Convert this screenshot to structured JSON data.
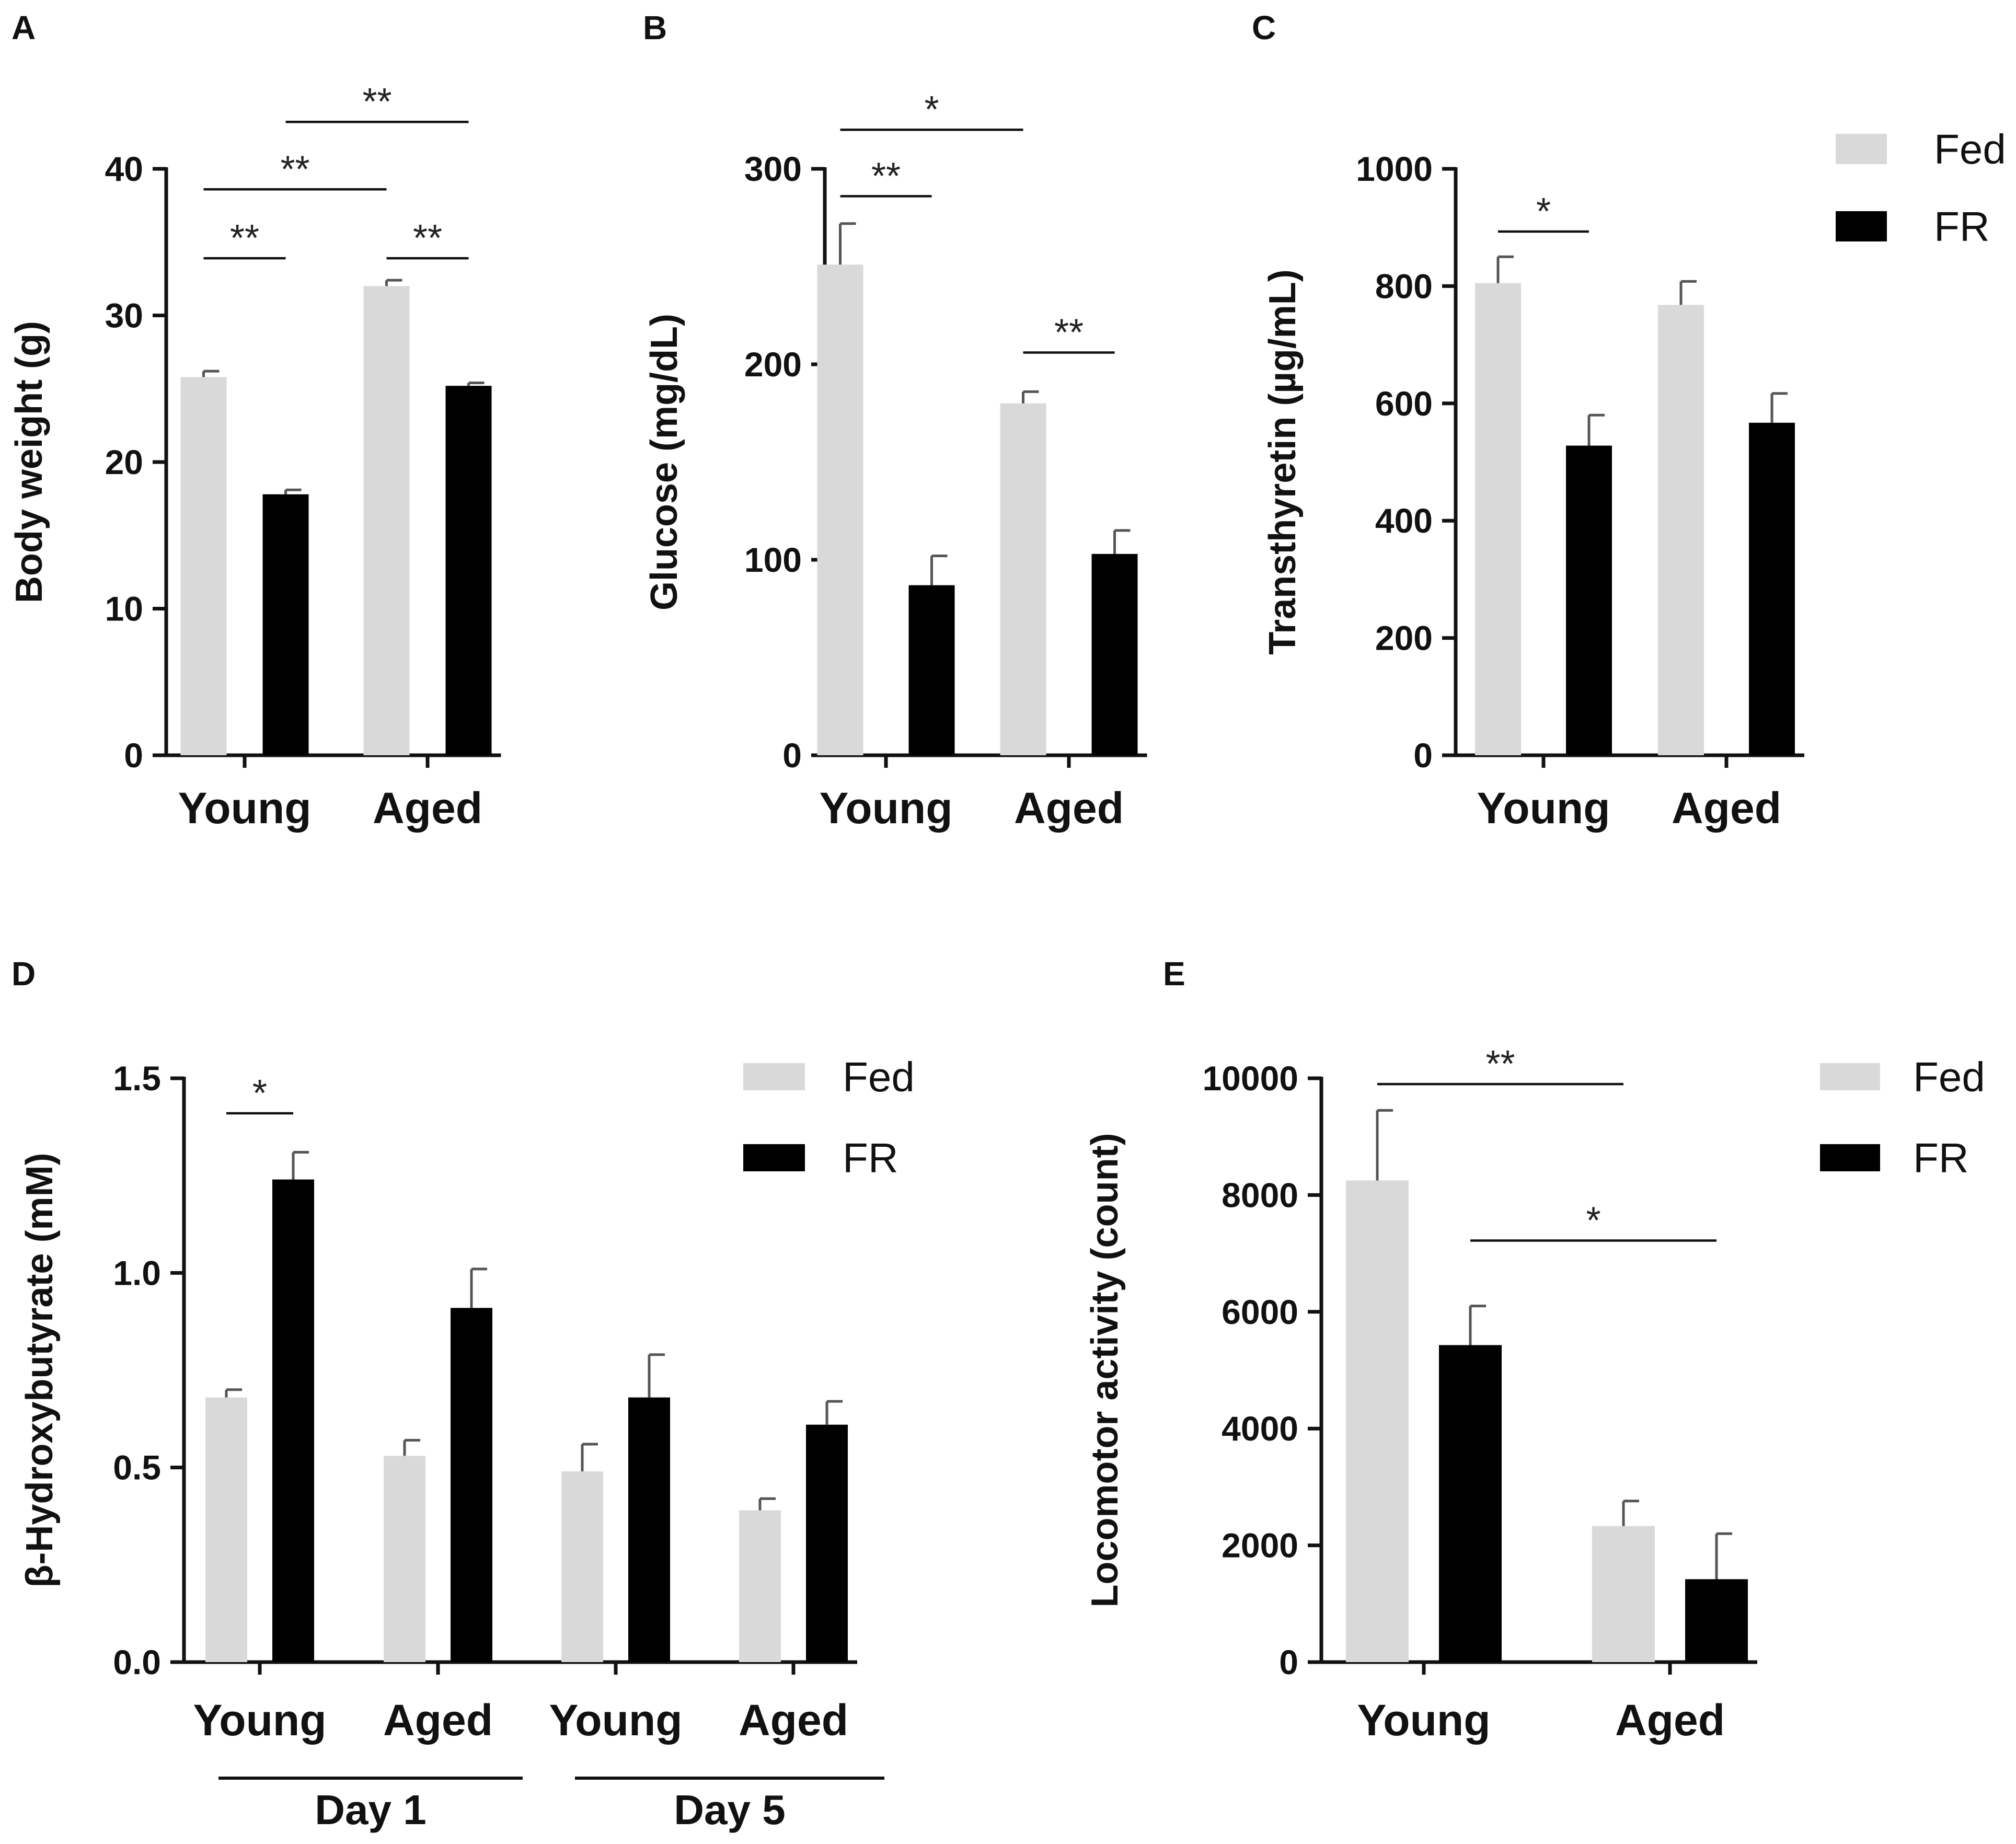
{
  "colors": {
    "fed": "#d9d9d9",
    "fr": "#000000",
    "axis": "#111111"
  },
  "legend": [
    {
      "name": "Fed",
      "color": "#d9d9d9"
    },
    {
      "name": "FR",
      "color": "#000000"
    }
  ],
  "chart_data": [
    {
      "panel": "A",
      "type": "bar",
      "ylabel": "Body weight (g)",
      "ylim": [
        0,
        40
      ],
      "yticks": [
        0,
        10,
        20,
        30,
        40
      ],
      "categories": [
        "Young",
        "Aged"
      ],
      "series": [
        {
          "name": "Fed",
          "values": [
            25.8,
            32.0
          ],
          "errors": [
            0.4,
            0.4
          ]
        },
        {
          "name": "FR",
          "values": [
            17.8,
            25.2
          ],
          "errors": [
            0.3,
            0.2
          ]
        }
      ],
      "significance": [
        {
          "label": "**",
          "from": [
            0,
            0
          ],
          "to": [
            0,
            1
          ],
          "y": 33.9
        },
        {
          "label": "**",
          "from": [
            0,
            0
          ],
          "to": [
            1,
            0
          ],
          "y": 38.6
        },
        {
          "label": "**",
          "from": [
            0,
            1
          ],
          "to": [
            1,
            1
          ],
          "y": 43.2
        },
        {
          "label": "**",
          "from": [
            1,
            0
          ],
          "to": [
            1,
            1
          ],
          "y": 33.9
        }
      ],
      "legend": false
    },
    {
      "panel": "B",
      "type": "bar",
      "ylabel": "Glucose (mg/dL)",
      "ylim": [
        0,
        300
      ],
      "yticks": [
        0,
        100,
        200,
        300
      ],
      "categories": [
        "Young",
        "Aged"
      ],
      "series": [
        {
          "name": "Fed",
          "values": [
            251,
            180
          ],
          "errors": [
            21,
            6
          ]
        },
        {
          "name": "FR",
          "values": [
            87,
            103
          ],
          "errors": [
            15,
            12
          ]
        }
      ],
      "significance": [
        {
          "label": "**",
          "from": [
            0,
            0
          ],
          "to": [
            0,
            1
          ],
          "y": 286
        },
        {
          "label": "*",
          "from": [
            0,
            0
          ],
          "to": [
            1,
            0
          ],
          "y": 320
        },
        {
          "label": "**",
          "from": [
            1,
            0
          ],
          "to": [
            1,
            1
          ],
          "y": 206
        }
      ],
      "legend": false
    },
    {
      "panel": "C",
      "type": "bar",
      "ylabel": "Transthyretin (µg/mL)",
      "ylim": [
        0,
        1000
      ],
      "yticks": [
        0,
        200,
        400,
        600,
        800,
        1000
      ],
      "categories": [
        "Young",
        "Aged"
      ],
      "series": [
        {
          "name": "Fed",
          "values": [
            805,
            768
          ],
          "errors": [
            45,
            40
          ]
        },
        {
          "name": "FR",
          "values": [
            528,
            567
          ],
          "errors": [
            52,
            50
          ]
        }
      ],
      "significance": [
        {
          "label": "*",
          "from": [
            0,
            0
          ],
          "to": [
            0,
            1
          ],
          "y": 893
        }
      ],
      "legend": true
    },
    {
      "panel": "D",
      "type": "bar",
      "ylabel": "β-Hydroxybutyrate (mM)",
      "ylim": [
        0,
        1.5
      ],
      "yticks": [
        "0.0",
        "0.5",
        "1.0",
        "1.5"
      ],
      "categories": [
        "Young",
        "Aged",
        "Young",
        "Aged"
      ],
      "groups": [
        {
          "label": "Day 1",
          "categories": [
            0,
            1
          ]
        },
        {
          "label": "Day 5",
          "categories": [
            2,
            3
          ]
        }
      ],
      "series": [
        {
          "name": "Fed",
          "values": [
            0.68,
            0.53,
            0.49,
            0.39
          ],
          "errors": [
            0.02,
            0.04,
            0.07,
            0.03
          ]
        },
        {
          "name": "FR",
          "values": [
            1.24,
            0.91,
            0.68,
            0.61
          ],
          "errors": [
            0.07,
            0.1,
            0.11,
            0.06
          ]
        }
      ],
      "significance": [
        {
          "label": "*",
          "from": [
            0,
            0
          ],
          "to": [
            0,
            1
          ],
          "y": 1.41
        }
      ],
      "legend": true
    },
    {
      "panel": "E",
      "type": "bar",
      "ylabel": "Locomotor activity (count)",
      "ylim": [
        0,
        10000
      ],
      "yticks": [
        0,
        2000,
        4000,
        6000,
        8000,
        10000
      ],
      "categories": [
        "Young",
        "Aged"
      ],
      "series": [
        {
          "name": "Fed",
          "values": [
            8250,
            2330
          ],
          "errors": [
            1200,
            430
          ]
        },
        {
          "name": "FR",
          "values": [
            5430,
            1420
          ],
          "errors": [
            670,
            780
          ]
        }
      ],
      "significance": [
        {
          "label": "**",
          "from": [
            0,
            0
          ],
          "to": [
            1,
            0
          ],
          "y": 9900
        },
        {
          "label": "*",
          "from": [
            0,
            1
          ],
          "to": [
            1,
            1
          ],
          "y": 7220
        }
      ],
      "legend": true
    }
  ]
}
